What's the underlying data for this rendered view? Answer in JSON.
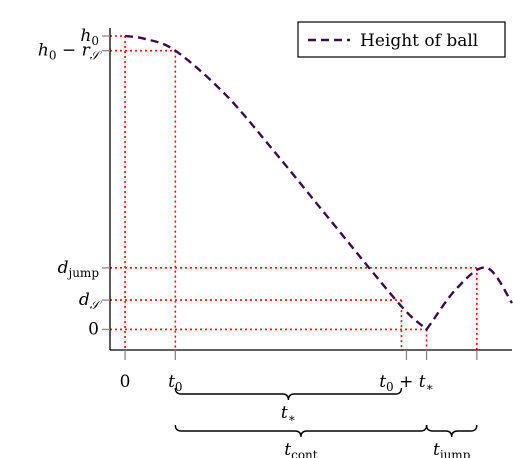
{
  "chart_data": {
    "type": "line",
    "title": "",
    "xlabel": "",
    "ylabel": "",
    "legend": {
      "placement": "top-right",
      "entries": [
        "Height of ball"
      ]
    },
    "grid": false,
    "colors": {
      "series": "#3b0a4f",
      "guides": "#ff0000",
      "axes": "#000000",
      "ticks": "#888888"
    },
    "series": [
      {
        "name": "Height of ball",
        "style": "dashed",
        "x": [
          0,
          0.4,
          1.0,
          2.0,
          3.0,
          4.0,
          5.0,
          5.6,
          6.0,
          6.6,
          7.2,
          7.7
        ],
        "y": [
          10.0,
          9.9,
          9.5,
          8.0,
          6.0,
          3.9,
          1.8,
          0.6,
          0.0,
          1.4,
          2.1,
          0.9
        ]
      }
    ],
    "x_ticks": [
      {
        "value": 0,
        "parts": [
          [
            "0",
            ""
          ]
        ]
      },
      {
        "value": 1,
        "parts": [
          [
            "t",
            ""
          ],
          [
            "0",
            "sub"
          ]
        ]
      },
      {
        "value": 5.6,
        "parts": [
          [
            "t",
            ""
          ],
          [
            "0",
            "sub"
          ],
          [
            " + t",
            ""
          ],
          [
            "∗",
            "sub"
          ]
        ]
      },
      {
        "value": 6.0,
        "parts": []
      },
      {
        "value": 7.0,
        "parts": []
      }
    ],
    "y_ticks": [
      {
        "value": 10.0,
        "parts": [
          [
            "h",
            ""
          ],
          [
            "0",
            "sub"
          ]
        ]
      },
      {
        "value": 9.5,
        "parts": [
          [
            "h",
            ""
          ],
          [
            "0",
            "sub"
          ],
          [
            " − r",
            ""
          ],
          [
            "𝒮",
            "sub"
          ]
        ]
      },
      {
        "value": 2.1,
        "parts": [
          [
            "d",
            ""
          ],
          [
            "jump",
            "subup"
          ]
        ]
      },
      {
        "value": 1.0,
        "parts": [
          [
            "d",
            ""
          ],
          [
            "𝒮",
            "sub"
          ]
        ]
      },
      {
        "value": 0.0,
        "parts": [
          [
            "0",
            ""
          ]
        ]
      }
    ],
    "guides": [
      {
        "x": 0,
        "y": 10.0
      },
      {
        "x": 1,
        "y": 9.5
      },
      {
        "x": 7.0,
        "y": 2.1
      },
      {
        "x": 5.5,
        "y": 1.0
      },
      {
        "x": 6.0,
        "y": 0.0
      }
    ],
    "braces": [
      {
        "from": 1,
        "to": 5.5,
        "parts": [
          [
            "t",
            ""
          ],
          [
            "∗",
            "sub"
          ]
        ],
        "row": 1
      },
      {
        "from": 1,
        "to": 6.0,
        "parts": [
          [
            "t",
            ""
          ],
          [
            "cont",
            "subup"
          ]
        ],
        "row": 2
      },
      {
        "from": 6.0,
        "to": 7.0,
        "parts": [
          [
            "t",
            ""
          ],
          [
            "jump",
            "subup"
          ]
        ],
        "row": 2
      }
    ],
    "xlim": [
      -0.3,
      7.7
    ],
    "ylim": [
      -0.7,
      10.0
    ]
  }
}
